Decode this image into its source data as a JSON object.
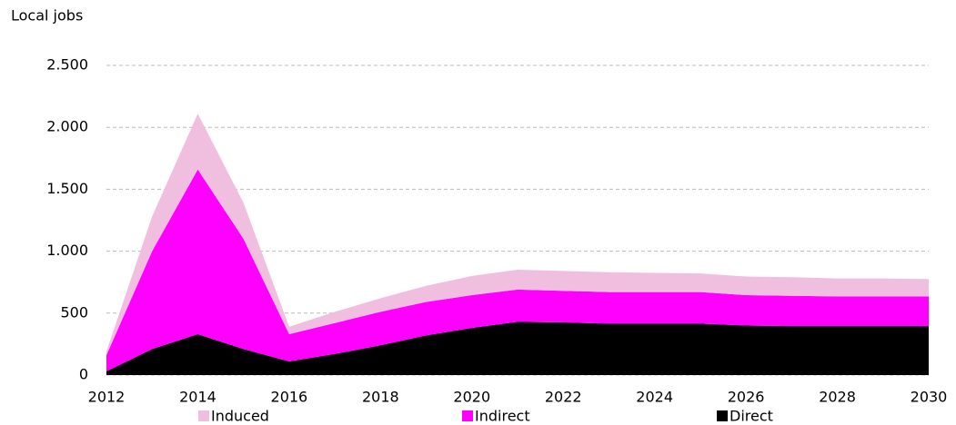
{
  "chart_data": {
    "type": "stacked_area",
    "y_axis_label": "Local jobs",
    "x": [
      2012,
      2013,
      2014,
      2015,
      2016,
      2017,
      2018,
      2019,
      2020,
      2021,
      2022,
      2023,
      2024,
      2025,
      2026,
      2027,
      2028,
      2029,
      2030
    ],
    "series": [
      {
        "name": "Induced",
        "color": "#f0bede",
        "values": [
          30,
          280,
          450,
          290,
          60,
          90,
          110,
          130,
          155,
          160,
          160,
          160,
          155,
          150,
          150,
          150,
          145,
          145,
          140
        ]
      },
      {
        "name": "Indirect",
        "color": "#ff00ff",
        "values": [
          130,
          790,
          1330,
          890,
          220,
          250,
          270,
          270,
          265,
          260,
          255,
          255,
          255,
          255,
          245,
          245,
          240,
          240,
          240
        ]
      },
      {
        "name": "Direct",
        "color": "#000000",
        "values": [
          30,
          210,
          330,
          210,
          110,
          170,
          240,
          320,
          380,
          430,
          425,
          415,
          415,
          415,
          400,
          395,
          395,
          395,
          395
        ]
      }
    ],
    "xlim": [
      2012,
      2030
    ],
    "xticks": [
      2012,
      2014,
      2016,
      2018,
      2020,
      2022,
      2024,
      2026,
      2028,
      2030
    ],
    "ylim": [
      0,
      2500
    ],
    "yticks": [
      0,
      500,
      {
        "value": 1000,
        "label": "1.000"
      },
      {
        "value": 1500,
        "label": "1.500"
      },
      {
        "value": 2000,
        "label": "2.000"
      },
      {
        "value": 2500,
        "label": "2.500"
      }
    ],
    "grid": true,
    "legend": "bottom"
  }
}
